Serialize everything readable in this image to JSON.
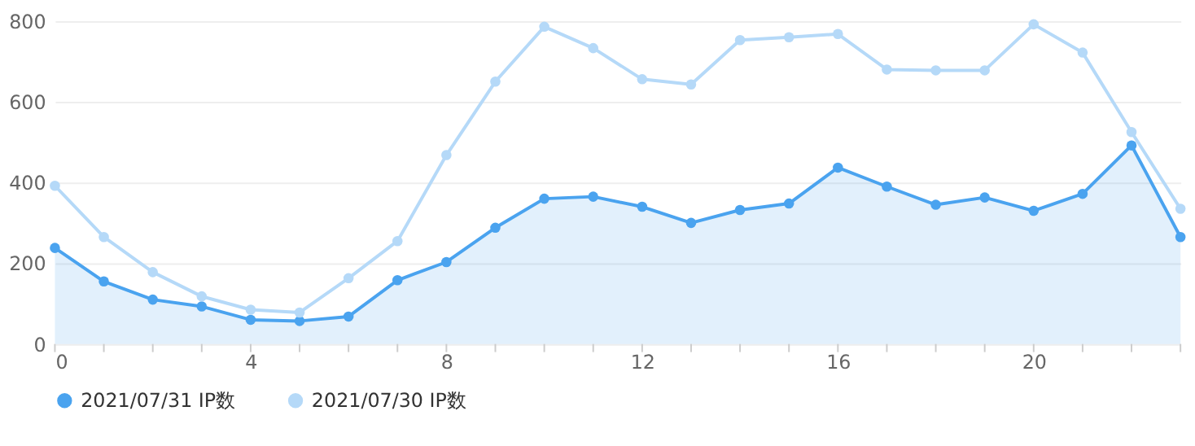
{
  "chart_data": {
    "type": "line",
    "x": [
      0,
      1,
      2,
      3,
      4,
      5,
      6,
      7,
      8,
      9,
      10,
      11,
      12,
      13,
      14,
      15,
      16,
      17,
      18,
      19,
      20,
      21,
      22,
      23
    ],
    "series": [
      {
        "name": "2021/07/31 IP数",
        "type": "area",
        "color": "#4aa3ef",
        "values": [
          238,
          155,
          110,
          93,
          60,
          57,
          68,
          158,
          203,
          288,
          360,
          365,
          340,
          300,
          332,
          348,
          437,
          390,
          345,
          363,
          330,
          372,
          492,
          265
        ]
      },
      {
        "name": "2021/07/30 IP数",
        "color": "#b5d9f8",
        "values": [
          392,
          265,
          178,
          118,
          85,
          78,
          163,
          255,
          468,
          650,
          786,
          733,
          656,
          643,
          753,
          760,
          768,
          680,
          678,
          678,
          792,
          722,
          525,
          335
        ]
      }
    ],
    "xlim": [
      0,
      23
    ],
    "xticks": [
      0,
      {
        "value": 1,
        "label": null
      },
      {
        "value": 2,
        "label": null
      },
      {
        "value": 3,
        "label": null
      },
      4,
      {
        "value": 5,
        "label": null
      },
      {
        "value": 6,
        "label": null
      },
      {
        "value": 7,
        "label": null
      },
      8,
      {
        "value": 9,
        "label": null
      },
      {
        "value": 10,
        "label": null
      },
      {
        "value": 11,
        "label": null
      },
      12,
      {
        "value": 13,
        "label": null
      },
      {
        "value": 14,
        "label": null
      },
      {
        "value": 15,
        "label": null
      },
      16,
      {
        "value": 17,
        "label": null
      },
      {
        "value": 18,
        "label": null
      },
      {
        "value": 19,
        "label": null
      },
      20,
      {
        "value": 21,
        "label": null
      },
      {
        "value": 22,
        "label": null
      },
      {
        "value": 23,
        "label": null
      }
    ],
    "ylim": [
      0,
      800
    ],
    "yticks": [
      0,
      200,
      400,
      600,
      800
    ],
    "grid": "y",
    "legend": "bottom",
    "marker": "circle",
    "line_style": "solid"
  }
}
